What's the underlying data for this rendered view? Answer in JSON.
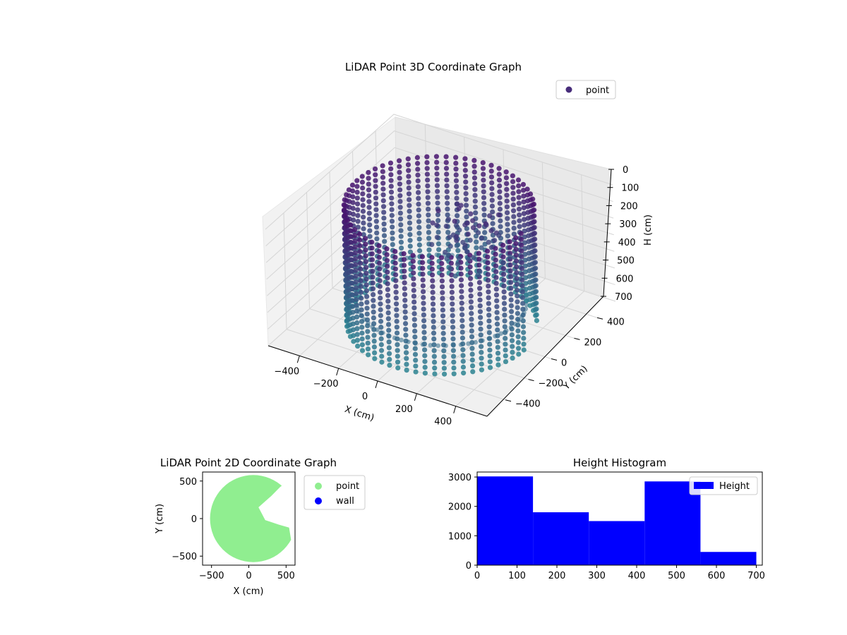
{
  "chart_data": [
    {
      "type": "scatter",
      "projection": "3d",
      "title": "LiDAR Point 3D Coordinate Graph",
      "xlabel": "X (cm)",
      "ylabel": "Y (cm)",
      "zlabel": "H (cm)",
      "xticks": [
        -400,
        -200,
        0,
        200,
        400
      ],
      "yticks": [
        -400,
        -200,
        0,
        200,
        400
      ],
      "zticks": [
        0,
        100,
        200,
        300,
        400,
        500,
        600,
        700
      ],
      "xlim": [
        -560,
        560
      ],
      "ylim": [
        -560,
        560
      ],
      "zlim": [
        0,
        700
      ],
      "z_axis_inverted": true,
      "legend": {
        "placement": "top-right",
        "entries": [
          {
            "name": "point",
            "color": "#472c7a"
          }
        ]
      },
      "colormap": "viridis",
      "series": [
        {
          "name": "point",
          "shape": "cylindrical wall, radius ~420 cm, heights 0 to 700 cm, with inner floor ring and scattered interior points"
        }
      ]
    },
    {
      "type": "scatter",
      "title": "LiDAR Point 2D Coordinate Graph",
      "xlabel": "X (cm)",
      "ylabel": "Y (cm)",
      "xticks": [
        -500,
        0,
        500
      ],
      "yticks": [
        -500,
        0,
        500
      ],
      "xlim": [
        -620,
        620
      ],
      "ylim": [
        -620,
        620
      ],
      "legend": {
        "placement": "outside-right",
        "entries": [
          {
            "name": "point",
            "color": "#90ee90"
          },
          {
            "name": "wall",
            "color": "#0000ff"
          }
        ]
      },
      "series": [
        {
          "name": "point",
          "color": "#90ee90",
          "shape": "filled disc centered ~(60, 0), radius ~580 cm, with a notch opening to the right"
        },
        {
          "name": "wall",
          "color": "#0000ff",
          "values": []
        }
      ]
    },
    {
      "type": "bar",
      "subtype": "histogram",
      "title": "Height Histogram",
      "xticks": [
        0,
        100,
        200,
        300,
        400,
        500,
        600,
        700
      ],
      "yticks": [
        0,
        1000,
        2000,
        3000
      ],
      "xlim": [
        0,
        715
      ],
      "ylim": [
        0,
        3170
      ],
      "bin_edges": [
        0,
        140,
        280,
        420,
        560,
        700
      ],
      "values": [
        3020,
        1800,
        1500,
        2850,
        450
      ],
      "legend": {
        "placement": "top-right",
        "entries": [
          {
            "name": "Height",
            "color": "#0000ff"
          }
        ]
      },
      "series": [
        {
          "name": "Height",
          "color": "#0000ff"
        }
      ]
    }
  ]
}
